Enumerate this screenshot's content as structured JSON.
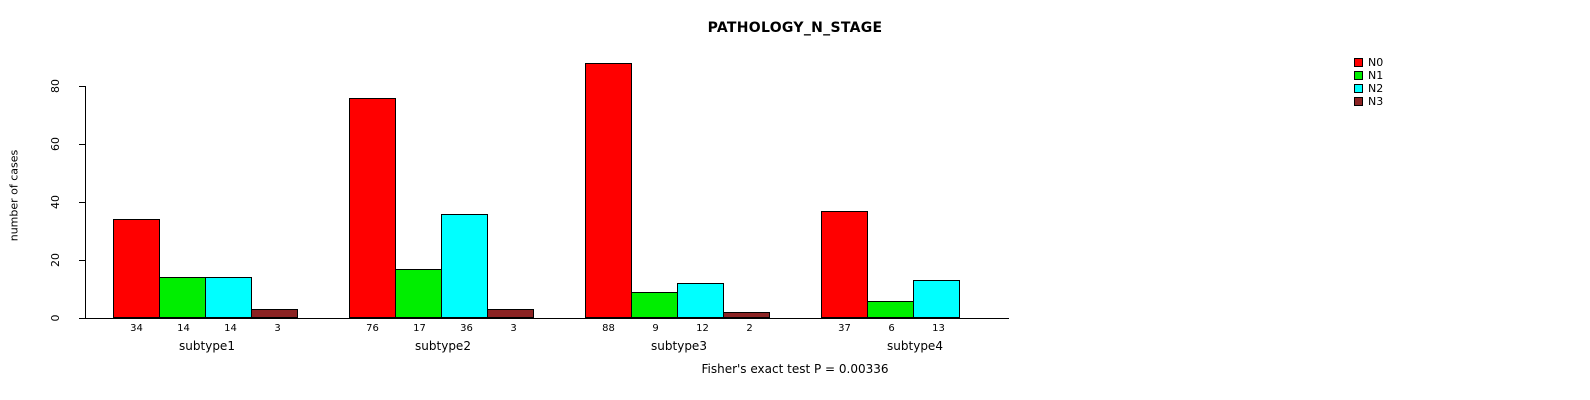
{
  "chart_data": {
    "type": "bar",
    "title": "PATHOLOGY_N_STAGE",
    "xlabel": "",
    "ylabel": "number of cases",
    "categories": [
      "subtype1",
      "subtype2",
      "subtype3",
      "subtype4"
    ],
    "series": [
      {
        "name": "N0",
        "color": "#FF0000",
        "values": [
          34,
          76,
          88,
          37
        ]
      },
      {
        "name": "N1",
        "color": "#00EE00",
        "values": [
          14,
          17,
          9,
          6
        ]
      },
      {
        "name": "N2",
        "color": "#00FFFF",
        "values": [
          14,
          36,
          12,
          13
        ]
      },
      {
        "name": "N3",
        "color": "#8B2323",
        "values": [
          3,
          3,
          2,
          null
        ]
      }
    ],
    "yticks": [
      0,
      20,
      40,
      60,
      80
    ],
    "ylim": [
      0,
      88
    ],
    "bar_value_labels": true,
    "grid": false,
    "legend_position": "top-right",
    "annotation": "Fisher's exact test P = 0.00336"
  }
}
